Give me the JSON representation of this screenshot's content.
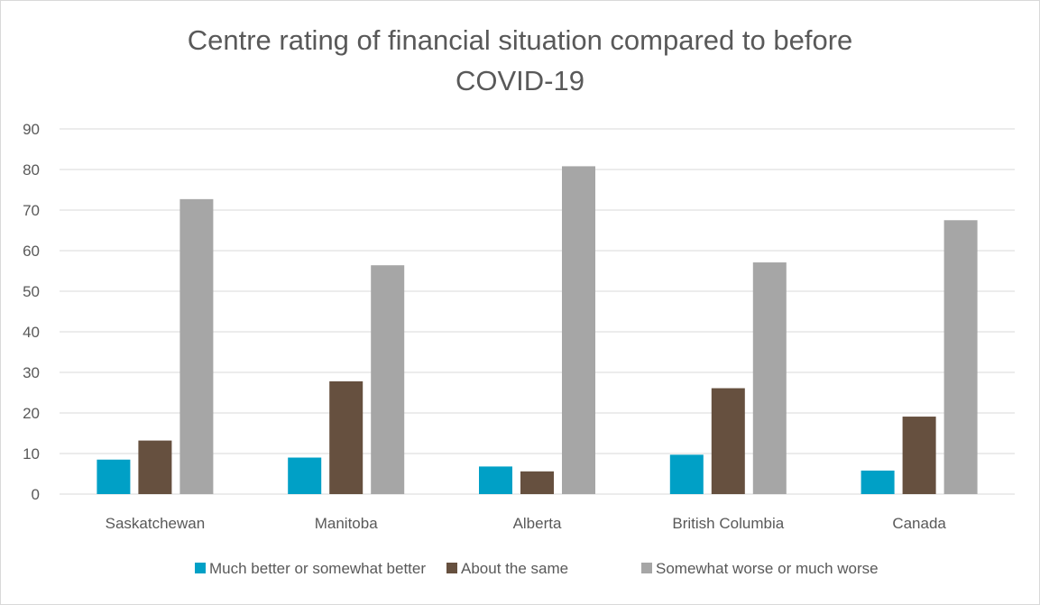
{
  "chart_data": {
    "type": "bar",
    "title": "Centre rating of financial situation compared to before COVID-19",
    "title_lines": [
      "Centre rating of financial situation compared to before",
      "COVID-19"
    ],
    "categories": [
      "Saskatchewan",
      "Manitoba",
      "Alberta",
      "British Columbia",
      "Canada"
    ],
    "series": [
      {
        "name": "Much better or somewhat better",
        "color": "#00a0c6",
        "values": [
          8.5,
          9.0,
          6.8,
          9.7,
          5.8
        ]
      },
      {
        "name": "About the same",
        "color": "#66503f",
        "values": [
          13.2,
          27.8,
          5.6,
          26.1,
          19.1
        ]
      },
      {
        "name": "Somewhat worse or much worse",
        "color": "#a6a6a6",
        "values": [
          72.7,
          56.4,
          80.8,
          57.1,
          67.5
        ]
      }
    ],
    "ylim": [
      0,
      90
    ],
    "yticks": [
      "0",
      "10",
      "20",
      "30",
      "40",
      "50",
      "60",
      "70",
      "80",
      "90"
    ],
    "grid": true,
    "legend_position": "bottom"
  }
}
